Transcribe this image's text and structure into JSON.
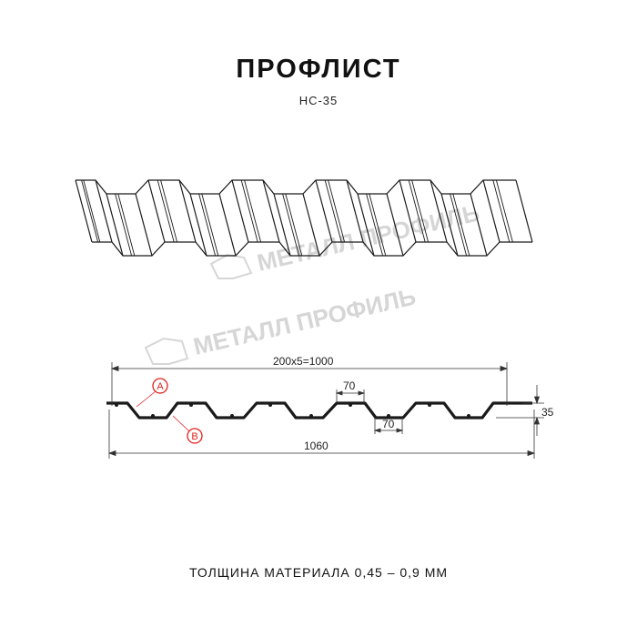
{
  "header": {
    "title": "ПРОФЛИСТ",
    "subtitle": "НС-35"
  },
  "watermark": "МЕТАЛЛ ПРОФИЛЬ",
  "dimensions": {
    "pitch_total": "200x5=1000",
    "total_width": "1060",
    "height": "35",
    "crest_width": "70",
    "valley_width": "70",
    "marker_a": "A",
    "marker_b": "B"
  },
  "footer": {
    "thickness": "ТОЛЩИНА МАТЕРИАЛА 0,45 – 0,9 ММ"
  },
  "colors": {
    "line": "#1a1a1a",
    "marker": "#e0201c",
    "watermark": "#d6d6d6"
  }
}
